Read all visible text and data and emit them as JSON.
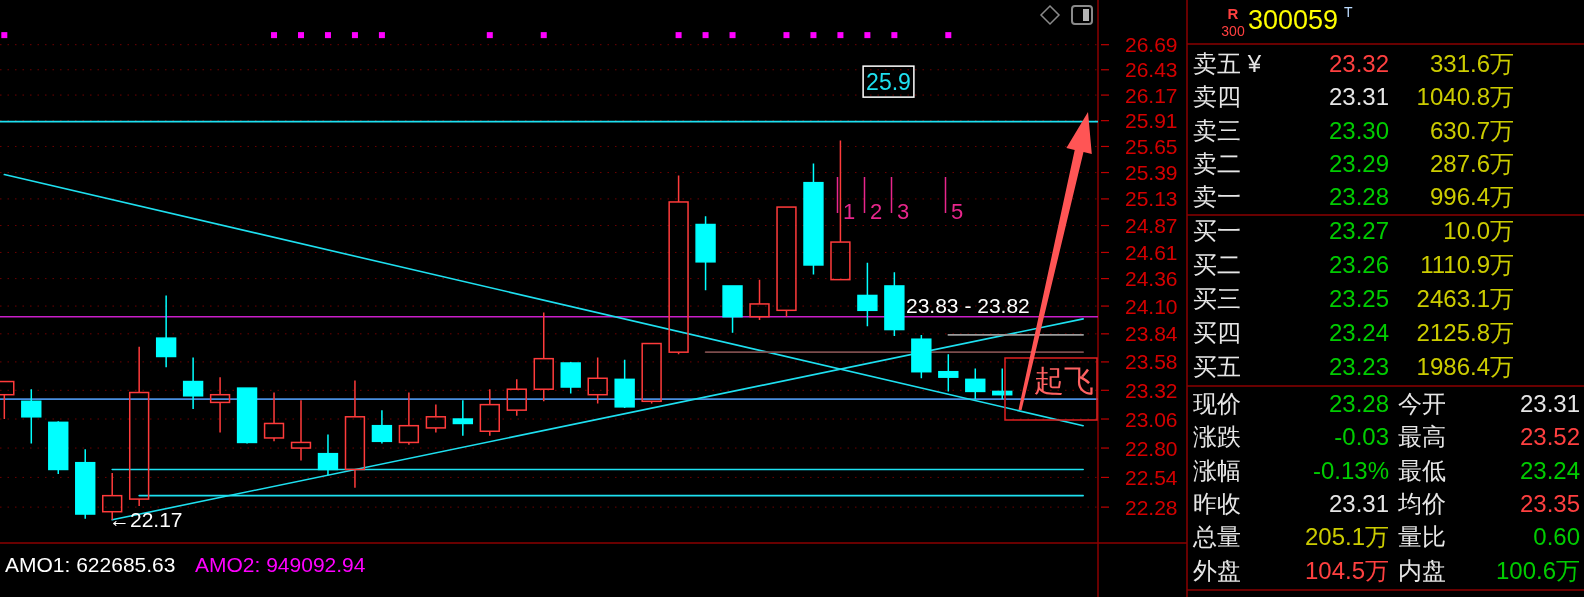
{
  "chart_data": {
    "type": "candlestick",
    "title": "300059",
    "subtitle": "T",
    "categories": [
      null,
      null,
      null,
      null,
      null,
      null,
      null,
      null,
      null,
      null,
      null,
      null,
      null,
      null,
      null,
      null,
      null,
      null,
      null,
      null,
      null,
      null,
      null,
      null,
      null,
      null,
      null,
      null,
      null,
      null,
      null,
      null,
      null,
      null,
      null,
      null,
      null,
      null,
      null,
      null,
      null
    ],
    "ohlc": [
      [
        23.28,
        23.4,
        23.06,
        23.4
      ],
      [
        23.22,
        23.33,
        22.84,
        23.08
      ],
      [
        23.03,
        23.04,
        22.57,
        22.61
      ],
      [
        22.67,
        22.79,
        22.18,
        22.22
      ],
      [
        22.24,
        22.58,
        22.17,
        22.38
      ],
      [
        22.35,
        23.72,
        22.29,
        23.3
      ],
      [
        23.8,
        24.2,
        23.53,
        23.63
      ],
      [
        23.4,
        23.62,
        23.15,
        23.27
      ],
      [
        23.21,
        23.44,
        22.94,
        23.28
      ],
      [
        23.34,
        23.34,
        22.84,
        22.85
      ],
      [
        22.89,
        23.3,
        22.86,
        23.02
      ],
      [
        22.8,
        23.23,
        22.69,
        22.85
      ],
      [
        22.75,
        22.92,
        22.56,
        22.61
      ],
      [
        22.61,
        23.41,
        22.45,
        23.08
      ],
      [
        23.0,
        23.14,
        22.84,
        22.86
      ],
      [
        22.85,
        23.3,
        22.83,
        23.0
      ],
      [
        22.98,
        23.19,
        22.94,
        23.08
      ],
      [
        23.06,
        23.23,
        22.91,
        23.02
      ],
      [
        22.95,
        23.33,
        22.91,
        23.19
      ],
      [
        23.14,
        23.42,
        23.09,
        23.33
      ],
      [
        23.33,
        24.04,
        23.22,
        23.61
      ],
      [
        23.57,
        23.58,
        23.29,
        23.35
      ],
      [
        23.28,
        23.62,
        23.2,
        23.43
      ],
      [
        23.42,
        23.6,
        23.16,
        23.17
      ],
      [
        23.22,
        23.75,
        23.2,
        23.75
      ],
      [
        23.67,
        25.36,
        23.65,
        25.1
      ],
      [
        24.88,
        24.96,
        24.25,
        24.52
      ],
      [
        24.29,
        24.29,
        23.85,
        24.0
      ],
      [
        24.0,
        24.35,
        23.97,
        24.12
      ],
      [
        24.06,
        25.05,
        24.0,
        25.05
      ],
      [
        25.29,
        25.48,
        24.4,
        24.49
      ],
      [
        24.35,
        25.71,
        24.35,
        24.71
      ],
      [
        24.2,
        24.51,
        23.91,
        24.06
      ],
      [
        24.29,
        24.42,
        23.82,
        23.88
      ],
      [
        23.79,
        23.83,
        23.43,
        23.49
      ],
      [
        23.49,
        23.65,
        23.31,
        23.44
      ],
      [
        23.42,
        23.52,
        23.24,
        23.31
      ],
      [
        23.31,
        23.52,
        23.24,
        23.28
      ],
      null,
      null,
      null
    ],
    "colors": [
      "#ff3b3b",
      "#00ffff",
      "#00ffff",
      "#00ffff",
      "#ff3b3b",
      "#ff3b3b",
      "#00ffff",
      "#00ffff",
      "#ff3b3b",
      "#00ffff",
      "#ff3b3b",
      "#ff3b3b",
      "#00ffff",
      "#ff3b3b",
      "#00ffff",
      "#ff3b3b",
      "#ff3b3b",
      "#00ffff",
      "#ff3b3b",
      "#ff3b3b",
      "#ff3b3b",
      "#00ffff",
      "#ff3b3b",
      "#00ffff",
      "#ff3b3b",
      "#ff3b3b",
      "#00ffff",
      "#00ffff",
      "#ff3b3b",
      "#ff3b3b",
      "#00ffff",
      "#ff3b3b",
      "#00ffff",
      "#00ffff",
      "#00ffff",
      "#00ffff",
      "#00ffff",
      "#00ffff",
      null,
      null,
      null
    ],
    "ylim": [
      21.97,
      27.16
    ],
    "yticks": [
      22.28,
      22.54,
      {
        "value": 22.8,
        "label": "22.80"
      },
      23.06,
      23.32,
      23.58,
      23.84,
      {
        "value": 24.1,
        "label": "24.10"
      },
      24.36,
      24.61,
      24.87,
      25.13,
      25.39,
      25.65,
      25.91,
      26.17,
      26.43,
      26.69
    ],
    "log": true,
    "grid": "y",
    "tick_labels": "y",
    "ref_lines": [
      {
        "axis": "y",
        "value": 25.9,
        "label": "25.9",
        "color": "#1ee0f0"
      },
      {
        "axis": "y",
        "value": 24.0,
        "color": "#c81ec8"
      },
      {
        "axis": "y",
        "value": 23.24,
        "color": "#4a8fe0"
      }
    ],
    "series": [
      {
        "type": "line",
        "values": [
          25.37,
          null,
          null,
          null,
          null,
          null,
          null,
          null,
          null,
          null,
          null,
          null,
          null,
          null,
          null,
          null,
          null,
          null,
          null,
          null,
          null,
          null,
          null,
          null,
          null,
          null,
          null,
          null,
          null,
          null,
          null,
          null,
          null,
          null,
          null,
          null,
          null,
          null,
          null,
          null,
          23.0
        ],
        "color": "#1ee0f0"
      },
      {
        "type": "line",
        "values": [
          null,
          null,
          null,
          null,
          22.17,
          null,
          null,
          null,
          null,
          null,
          null,
          null,
          null,
          null,
          null,
          null,
          null,
          null,
          null,
          null,
          null,
          null,
          null,
          null,
          null,
          null,
          null,
          null,
          null,
          null,
          null,
          null,
          null,
          null,
          null,
          null,
          null,
          null,
          null,
          null,
          23.98
        ],
        "color": "#1ee0f0"
      },
      {
        "type": "line",
        "values": [
          null,
          null,
          null,
          null,
          22.61,
          null,
          null,
          null,
          null,
          null,
          null,
          null,
          null,
          null,
          null,
          null,
          null,
          null,
          null,
          null,
          null,
          null,
          null,
          null,
          null,
          null,
          null,
          null,
          null,
          null,
          null,
          null,
          null,
          null,
          null,
          null,
          null,
          null,
          null,
          null,
          22.61
        ],
        "color": "#1ee0f0"
      },
      {
        "type": "line",
        "values": [
          null,
          null,
          null,
          null,
          null,
          22.38,
          null,
          null,
          null,
          null,
          null,
          null,
          null,
          null,
          null,
          null,
          null,
          null,
          null,
          null,
          null,
          null,
          null,
          null,
          null,
          null,
          null,
          null,
          null,
          null,
          null,
          null,
          null,
          null,
          null,
          null,
          null,
          null,
          null,
          null,
          22.38
        ],
        "color": "#1ee0f0"
      },
      {
        "type": "line",
        "values": [
          null,
          null,
          null,
          null,
          null,
          null,
          null,
          null,
          null,
          null,
          null,
          null,
          null,
          null,
          null,
          null,
          null,
          null,
          null,
          null,
          null,
          null,
          null,
          null,
          null,
          null,
          23.67,
          null,
          null,
          null,
          null,
          null,
          null,
          null,
          null,
          null,
          null,
          null,
          null,
          null,
          23.67
        ],
        "color": "#7c4c4c"
      },
      {
        "type": "line",
        "values": [
          null,
          null,
          null,
          null,
          null,
          null,
          null,
          null,
          null,
          null,
          null,
          null,
          null,
          null,
          null,
          null,
          null,
          null,
          null,
          null,
          null,
          null,
          null,
          null,
          null,
          null,
          null,
          null,
          null,
          null,
          null,
          null,
          null,
          null,
          null,
          23.83,
          null,
          null,
          null,
          null,
          23.83
        ],
        "color": "#9a9a9a"
      },
      {
        "type": "scatter",
        "values": [
          26.79,
          null,
          null,
          null,
          null,
          null,
          null,
          null,
          null,
          null,
          26.79,
          26.79,
          26.79,
          26.79,
          26.79,
          null,
          null,
          null,
          26.79,
          null,
          26.79,
          null,
          null,
          null,
          null,
          26.79,
          26.79,
          26.79,
          null,
          26.79,
          26.79,
          26.79,
          26.79,
          26.79,
          null,
          26.79,
          null,
          null,
          null,
          null,
          null
        ],
        "color": "#ff00ff",
        "marker": "square"
      }
    ],
    "annotations": [
      "←22.17",
      "23.83 - 23.82",
      "1",
      "2",
      "3",
      "5",
      "起飞",
      "AMO1: 622685.63",
      "AMO2: 949092.94",
      "R",
      "300",
      "卖五 ¥",
      "23.32",
      "331.6万",
      "卖四",
      "23.31",
      "1040.8万",
      "卖三",
      "23.30",
      "630.7万",
      "卖二",
      "23.29",
      "287.6万",
      "卖一",
      "23.28",
      "996.4万",
      "买一",
      "23.27",
      "10.0万",
      "买二",
      "23.26",
      "1110.9万",
      "买三",
      "23.25",
      "2463.1万",
      "买四",
      "23.24",
      "2125.8万",
      "买五",
      "23.23",
      "1986.4万",
      "现价",
      "23.28",
      "今开",
      "23.31",
      "涨跌",
      "-0.03",
      "最高",
      "23.52",
      "涨幅",
      "-0.13%",
      "最低",
      "23.24",
      "昨收",
      "23.31",
      "均价",
      "23.35",
      "总量",
      "205.1万",
      "量比",
      "0.60",
      "外盘",
      "104.5万",
      "内盘",
      "100.6万"
    ]
  }
}
